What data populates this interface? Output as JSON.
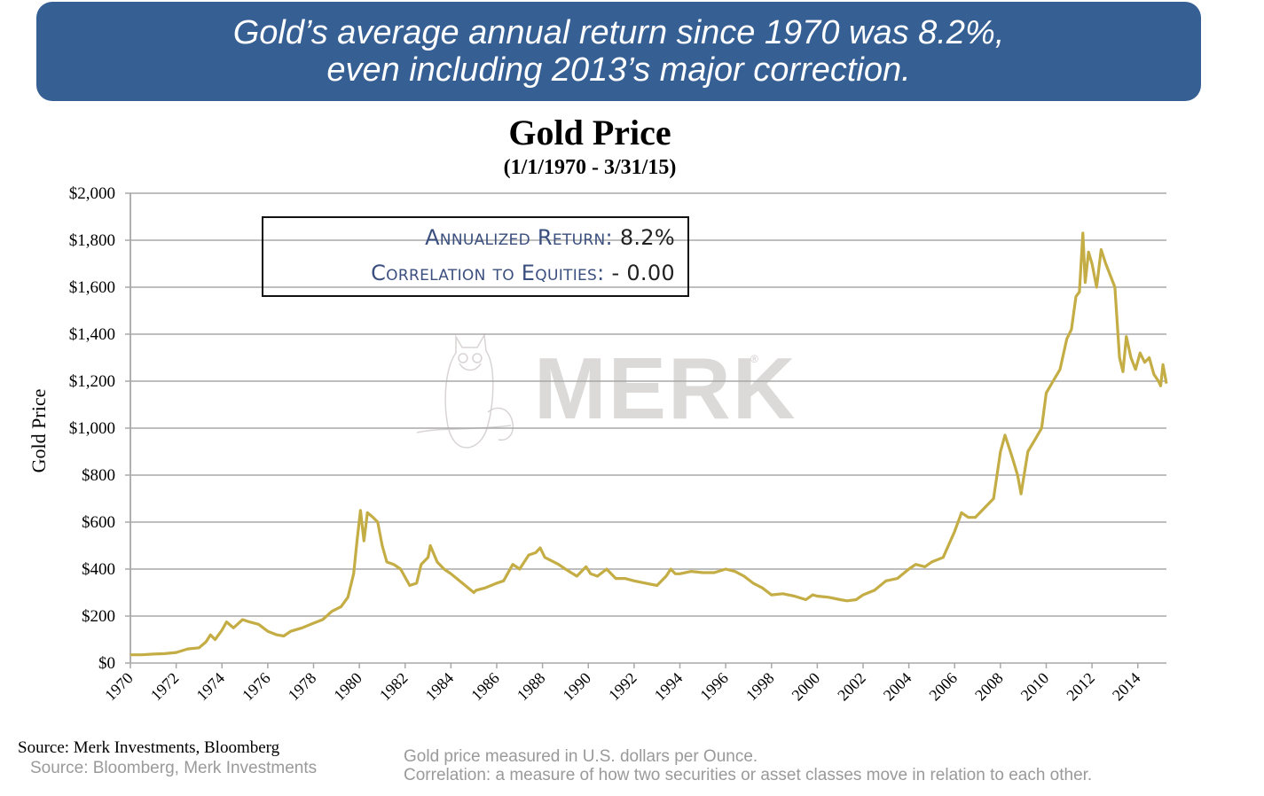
{
  "banner": {
    "line1": "Gold’s average annual return since 1970 was 8.2%,",
    "line2": "even including 2013’s major correction.",
    "color": "#365f94"
  },
  "stats": {
    "annualized_label": "Annualized Return:",
    "annualized_value": "8.2%",
    "correlation_label": "Correlation to Equities:",
    "correlation_value": "- 0.00"
  },
  "watermark": {
    "text": "MERK",
    "reg": "®",
    "icon": "owl-icon"
  },
  "footer": {
    "source_primary": "Source: Merk Investments, Bloomberg",
    "source_secondary": "Source: Bloomberg, Merk Investments",
    "note1": "Gold price measured in U.S. dollars per Ounce.",
    "note2": "Correlation: a measure of how two securities or asset classes move in relation to each other."
  },
  "chart_data": {
    "type": "line",
    "title": "Gold Price",
    "subtitle": "(1/1/1970 - 3/31/15)",
    "xlabel": "",
    "ylabel": "Gold Price",
    "xlim": [
      1970,
      2015.25
    ],
    "ylim": [
      0,
      2000
    ],
    "grid": true,
    "legend": "none",
    "line_color": "#c4ad45",
    "y_ticks": [
      0,
      200,
      400,
      600,
      800,
      1000,
      1200,
      1400,
      1600,
      1800,
      2000
    ],
    "y_tick_labels": [
      "$0",
      "$200",
      "$400",
      "$600",
      "$800",
      "$1,000",
      "$1,200",
      "$1,400",
      "$1,600",
      "$1,800",
      "$2,000"
    ],
    "x_ticks": [
      1970,
      1972,
      1974,
      1976,
      1978,
      1980,
      1982,
      1984,
      1986,
      1988,
      1990,
      1992,
      1994,
      1996,
      1998,
      2000,
      2002,
      2004,
      2006,
      2008,
      2010,
      2012,
      2014
    ],
    "x_tick_labels": [
      "1970",
      "1972",
      "1974",
      "1976",
      "1978",
      "1980",
      "1982",
      "1984",
      "1986",
      "1988",
      "1990",
      "1992",
      "1994",
      "1996",
      "1998",
      "2000",
      "2002",
      "2004",
      "2006",
      "2008",
      "2010",
      "2012",
      "2014"
    ],
    "series": [
      {
        "name": "Gold Price",
        "x": [
          1970.0,
          1970.5,
          1971.0,
          1971.5,
          1972.0,
          1972.5,
          1973.0,
          1973.3,
          1973.5,
          1973.7,
          1974.0,
          1974.2,
          1974.5,
          1974.9,
          1975.2,
          1975.6,
          1976.0,
          1976.4,
          1976.7,
          1977.0,
          1977.5,
          1978.0,
          1978.4,
          1978.8,
          1979.2,
          1979.5,
          1979.75,
          1979.9,
          1980.05,
          1980.2,
          1980.35,
          1980.6,
          1980.8,
          1981.0,
          1981.2,
          1981.5,
          1981.8,
          1982.2,
          1982.5,
          1982.7,
          1983.0,
          1983.1,
          1983.4,
          1983.7,
          1984.0,
          1984.5,
          1985.0,
          1985.1,
          1985.5,
          1986.0,
          1986.3,
          1986.7,
          1987.0,
          1987.4,
          1987.7,
          1987.9,
          1988.1,
          1988.3,
          1988.7,
          1989.0,
          1989.5,
          1989.9,
          1990.1,
          1990.4,
          1990.8,
          1991.2,
          1991.6,
          1992.0,
          1992.5,
          1993.0,
          1993.4,
          1993.6,
          1993.8,
          1994.0,
          1994.5,
          1995.0,
          1995.5,
          1996.0,
          1996.4,
          1996.8,
          1997.2,
          1997.6,
          1998.0,
          1998.5,
          1999.0,
          1999.5,
          1999.8,
          2000.0,
          2000.5,
          2001.0,
          2001.3,
          2001.7,
          2002.0,
          2002.5,
          2003.0,
          2003.5,
          2004.0,
          2004.3,
          2004.7,
          2005.0,
          2005.5,
          2006.0,
          2006.3,
          2006.6,
          2006.9,
          2007.3,
          2007.7,
          2008.0,
          2008.2,
          2008.5,
          2008.75,
          2008.9,
          2009.2,
          2009.5,
          2009.8,
          2010.0,
          2010.3,
          2010.6,
          2010.9,
          2011.1,
          2011.3,
          2011.45,
          2011.6,
          2011.7,
          2011.85,
          2012.0,
          2012.2,
          2012.4,
          2012.6,
          2012.8,
          2013.0,
          2013.2,
          2013.35,
          2013.5,
          2013.7,
          2013.9,
          2014.1,
          2014.3,
          2014.5,
          2014.7,
          2014.9,
          2015.0,
          2015.1,
          2015.25
        ],
        "y": [
          35,
          35,
          38,
          40,
          45,
          60,
          65,
          90,
          120,
          100,
          140,
          175,
          150,
          185,
          175,
          165,
          135,
          120,
          115,
          135,
          150,
          170,
          185,
          220,
          240,
          280,
          380,
          520,
          650,
          520,
          640,
          620,
          600,
          500,
          430,
          420,
          400,
          330,
          340,
          420,
          450,
          500,
          430,
          400,
          380,
          340,
          300,
          310,
          320,
          340,
          350,
          420,
          400,
          460,
          470,
          490,
          450,
          440,
          420,
          400,
          370,
          410,
          380,
          370,
          400,
          360,
          360,
          350,
          340,
          330,
          370,
          400,
          380,
          380,
          390,
          385,
          385,
          400,
          390,
          370,
          340,
          320,
          290,
          295,
          285,
          270,
          290,
          285,
          280,
          270,
          265,
          270,
          290,
          310,
          350,
          360,
          400,
          420,
          410,
          430,
          450,
          560,
          640,
          620,
          620,
          660,
          700,
          900,
          970,
          880,
          800,
          720,
          900,
          950,
          1000,
          1150,
          1200,
          1250,
          1380,
          1420,
          1560,
          1580,
          1830,
          1620,
          1750,
          1700,
          1600,
          1760,
          1700,
          1650,
          1600,
          1300,
          1240,
          1390,
          1300,
          1250,
          1320,
          1280,
          1300,
          1230,
          1200,
          1180,
          1270,
          1190
        ]
      }
    ]
  }
}
